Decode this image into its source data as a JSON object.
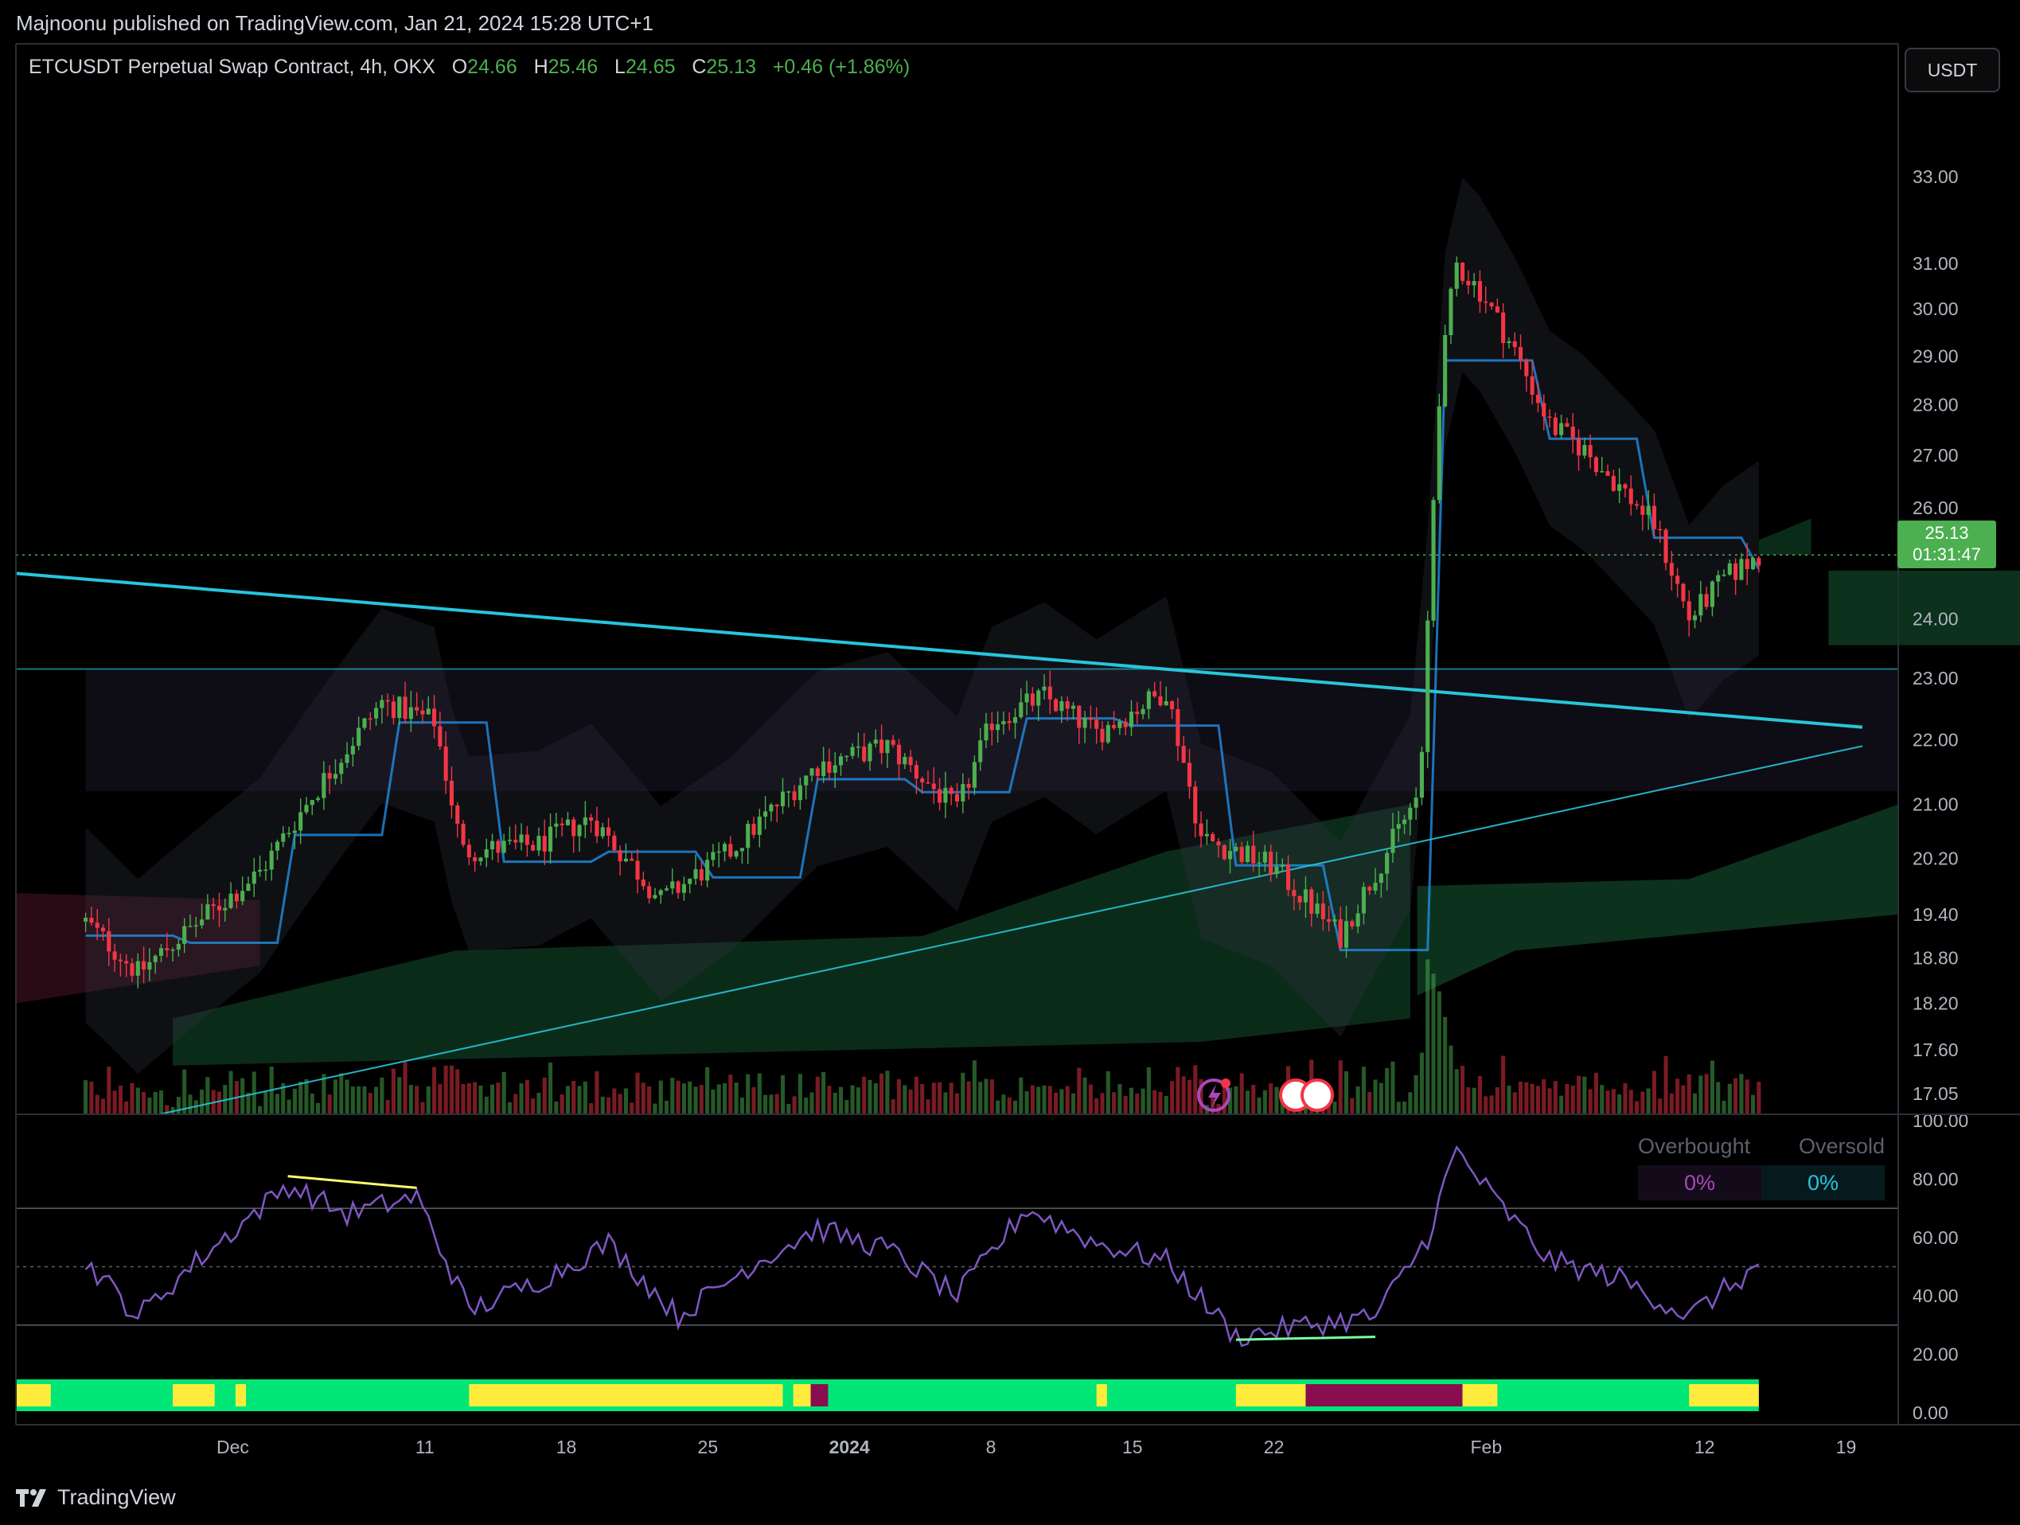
{
  "publisher": "Majnoonu published on TradingView.com, Jan 21, 2024 15:28 UTC+1",
  "legend": {
    "symbol": "ETCUSDT Perpetual Swap Contract, 4h, OKX",
    "o_label": "O",
    "o": "24.66",
    "h_label": "H",
    "h": "25.46",
    "l_label": "L",
    "l": "24.65",
    "c_label": "C",
    "c": "25.13",
    "change": "+0.46 (+1.86%)"
  },
  "currency_button": "USDT",
  "last_price": {
    "price": "25.13",
    "countdown": "01:31:47"
  },
  "brand": "TradingView",
  "overbought_label": "Overbought",
  "oversold_label": "Oversold",
  "overbought_value": "0%",
  "oversold_value": "0%",
  "colors": {
    "up": "#4caf50",
    "down": "#f23645",
    "rsi": "#7e57c2",
    "trendline": "#26c6da",
    "kijun": "#2196f3",
    "cloud_green": "#0f3d24",
    "cloud_red": "#3a1020",
    "bar_green": "#00e676",
    "bar_yellow": "#ffeb3b",
    "bar_maroon": "#880e4f"
  },
  "chart_data": [
    {
      "type": "candlestick",
      "title": "ETCUSDT Perpetual Swap Contract, 4h, OKX",
      "x_ticks": [
        "Dec",
        "11",
        "18",
        "25",
        "2024",
        "8",
        "15",
        "22",
        "Feb",
        "12",
        "19"
      ],
      "y_ticks": [
        "33.00",
        "31.00",
        "30.00",
        "29.00",
        "28.00",
        "27.00",
        "26.00",
        "24.00",
        "23.00",
        "22.00",
        "21.00",
        "20.20",
        "19.40",
        "18.80",
        "18.20",
        "17.60",
        "17.05"
      ],
      "y_scale": "log",
      "ylim": [
        16.8,
        36.0
      ],
      "x_range_days": [
        -2,
        52
      ],
      "last": 25.13,
      "horizontal_level": 23.15,
      "anchors": [
        {
          "day": 0,
          "close": 19.3
        },
        {
          "day": 1.5,
          "close": 18.6
        },
        {
          "day": 3,
          "close": 19.2
        },
        {
          "day": 5,
          "close": 20.0
        },
        {
          "day": 7,
          "close": 21.5
        },
        {
          "day": 8.5,
          "close": 22.6
        },
        {
          "day": 10,
          "close": 22.3
        },
        {
          "day": 10.8,
          "close": 20.3
        },
        {
          "day": 13,
          "close": 20.4
        },
        {
          "day": 14.5,
          "close": 20.8
        },
        {
          "day": 16.5,
          "close": 19.6
        },
        {
          "day": 18.5,
          "close": 20.3
        },
        {
          "day": 21,
          "close": 21.6
        },
        {
          "day": 23,
          "close": 21.9
        },
        {
          "day": 25,
          "close": 20.9
        },
        {
          "day": 26,
          "close": 22.3
        },
        {
          "day": 27.5,
          "close": 22.7
        },
        {
          "day": 29,
          "close": 22.1
        },
        {
          "day": 31,
          "close": 22.8
        },
        {
          "day": 32,
          "close": 20.5
        },
        {
          "day": 34,
          "close": 20.1
        },
        {
          "day": 36,
          "close": 19.1
        },
        {
          "day": 37,
          "close": 20.0
        },
        {
          "day": 38.3,
          "close": 21.2
        },
        {
          "day": 38.8,
          "close": 28.0
        },
        {
          "day": 39.3,
          "close": 31.0
        },
        {
          "day": 40,
          "close": 30.4
        },
        {
          "day": 41,
          "close": 29.1
        },
        {
          "day": 42,
          "close": 27.6
        },
        {
          "day": 43,
          "close": 27.1
        },
        {
          "day": 44,
          "close": 26.4
        },
        {
          "day": 45,
          "close": 25.7
        },
        {
          "day": 46,
          "close": 24.0
        },
        {
          "day": 47,
          "close": 24.7
        },
        {
          "day": 48,
          "close": 25.13
        }
      ]
    },
    {
      "type": "line",
      "name": "RSI",
      "y_ticks": [
        "100.00",
        "80.00",
        "60.00",
        "40.00",
        "20.00",
        "0.00"
      ],
      "ylim": [
        0,
        100
      ],
      "bands": [
        70,
        50,
        30
      ],
      "anchors": [
        {
          "day": 0,
          "value": 52
        },
        {
          "day": 1.5,
          "value": 33
        },
        {
          "day": 3,
          "value": 50
        },
        {
          "day": 5.8,
          "value": 78
        },
        {
          "day": 7.5,
          "value": 68
        },
        {
          "day": 9.5,
          "value": 74
        },
        {
          "day": 11,
          "value": 35
        },
        {
          "day": 13,
          "value": 45
        },
        {
          "day": 15,
          "value": 58
        },
        {
          "day": 17,
          "value": 33
        },
        {
          "day": 19,
          "value": 50
        },
        {
          "day": 21,
          "value": 63
        },
        {
          "day": 23,
          "value": 56
        },
        {
          "day": 25,
          "value": 40
        },
        {
          "day": 27,
          "value": 70
        },
        {
          "day": 29,
          "value": 58
        },
        {
          "day": 31,
          "value": 52
        },
        {
          "day": 33,
          "value": 26
        },
        {
          "day": 35,
          "value": 30
        },
        {
          "day": 37,
          "value": 33
        },
        {
          "day": 38.5,
          "value": 60
        },
        {
          "day": 39.3,
          "value": 90
        },
        {
          "day": 40.5,
          "value": 72
        },
        {
          "day": 42,
          "value": 52
        },
        {
          "day": 44,
          "value": 46
        },
        {
          "day": 46,
          "value": 33
        },
        {
          "day": 47,
          "value": 42
        },
        {
          "day": 48,
          "value": 50
        }
      ]
    }
  ]
}
